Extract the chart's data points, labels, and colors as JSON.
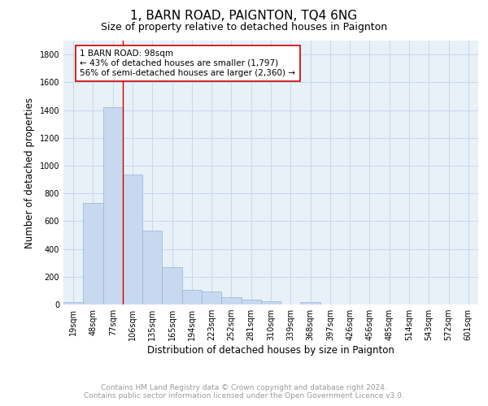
{
  "title": "1, BARN ROAD, PAIGNTON, TQ4 6NG",
  "subtitle": "Size of property relative to detached houses in Paignton",
  "xlabel": "Distribution of detached houses by size in Paignton",
  "ylabel": "Number of detached properties",
  "categories": [
    "19sqm",
    "48sqm",
    "77sqm",
    "106sqm",
    "135sqm",
    "165sqm",
    "194sqm",
    "223sqm",
    "252sqm",
    "281sqm",
    "310sqm",
    "339sqm",
    "368sqm",
    "397sqm",
    "426sqm",
    "456sqm",
    "485sqm",
    "514sqm",
    "543sqm",
    "572sqm",
    "601sqm"
  ],
  "values": [
    20,
    730,
    1420,
    935,
    530,
    270,
    105,
    95,
    50,
    35,
    25,
    0,
    15,
    0,
    0,
    0,
    0,
    0,
    0,
    0,
    0
  ],
  "bar_color": "#c8d9ef",
  "bar_edge_color": "#91b4d9",
  "vline_color": "#cc0000",
  "vline_x_index": 2.724,
  "annotation_line1": "1 BARN ROAD: 98sqm",
  "annotation_line2": "← 43% of detached houses are smaller (1,797)",
  "annotation_line3": "56% of semi-detached houses are larger (2,360) →",
  "annotation_box_color": "#ffffff",
  "annotation_box_edge": "#cc0000",
  "ylim": [
    0,
    1900
  ],
  "yticks": [
    0,
    200,
    400,
    600,
    800,
    1000,
    1200,
    1400,
    1600,
    1800
  ],
  "grid_color": "#c8d8ec",
  "bg_color": "#e8f0f8",
  "fig_bg_color": "#ffffff",
  "title_fontsize": 11,
  "subtitle_fontsize": 9,
  "axis_label_fontsize": 8.5,
  "tick_fontsize": 7,
  "annotation_fontsize": 7.5,
  "footer_fontsize": 6.5,
  "footer_line1": "Contains HM Land Registry data © Crown copyright and database right 2024.",
  "footer_line2": "Contains public sector information licensed under the Open Government Licence v3.0."
}
